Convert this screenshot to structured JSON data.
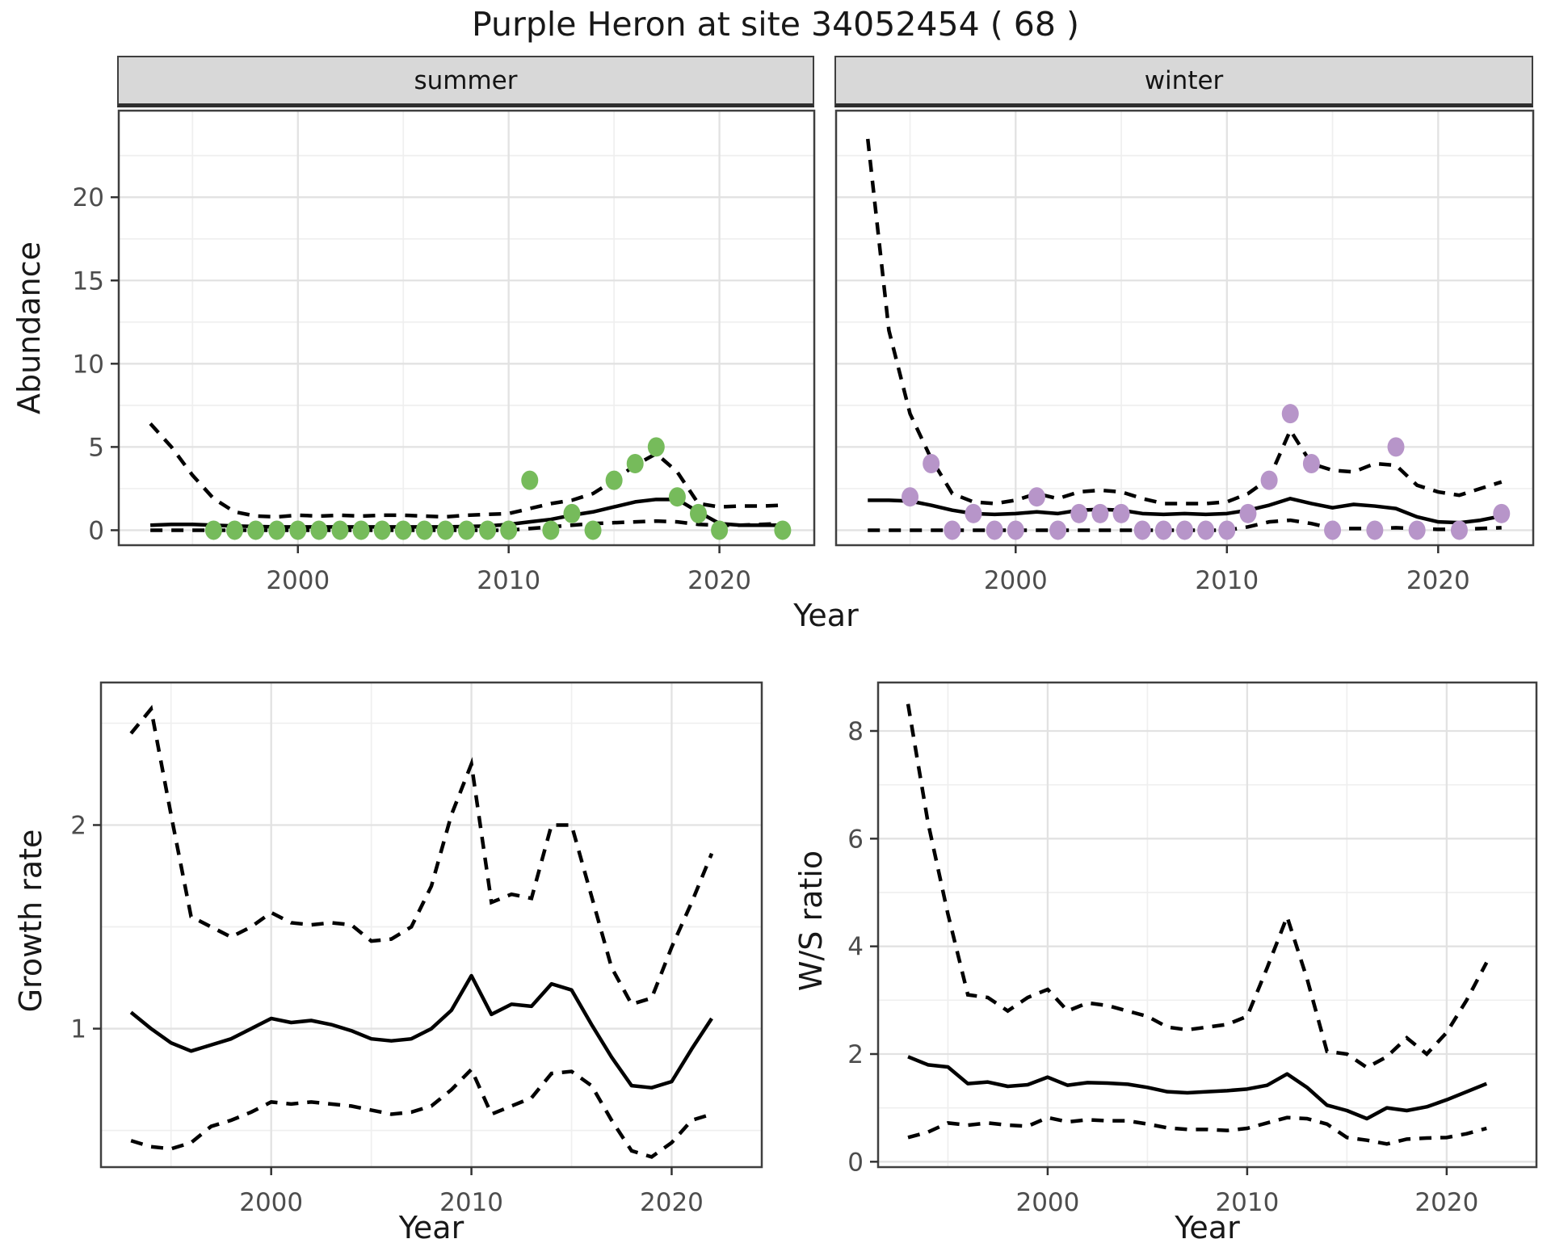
{
  "title": "Purple Heron at site 34052454 ( 68 )",
  "top_row": {
    "facets": [
      "summer",
      "winter"
    ],
    "ylabel": "Abundance",
    "xlabel": "Year"
  },
  "bottom_row": {
    "left_ylabel": "Growth rate",
    "left_xlabel": "Year",
    "right_ylabel": "W/S ratio",
    "right_xlabel": "Year"
  },
  "colors": {
    "summer_point": "#76BB5B",
    "winter_point": "#B795C9",
    "line": "#000000",
    "strip_bg": "#D8D8D8",
    "panel_border": "#3F3F3F",
    "grid_major": "#E2E2E2",
    "grid_minor": "#EFEFEF",
    "tick_text": "#4D4D4D",
    "tick_mark": "#333333"
  },
  "chart_data": [
    {
      "id": "summer",
      "type": "line",
      "facet_label": "summer",
      "xlabel": "Year",
      "ylabel": "Abundance",
      "x_domain": [
        1991.5,
        2024.5
      ],
      "y_domain": [
        -0.9,
        25.2
      ],
      "x_ticks": [
        2000,
        2010,
        2020
      ],
      "x_minor": [
        1995,
        2005,
        2015
      ],
      "y_ticks": [
        0,
        5,
        10,
        15,
        20
      ],
      "y_minor": [
        2.5,
        7.5,
        12.5,
        17.5,
        22.5
      ],
      "legend": "none",
      "grid": true,
      "point_color": "#76BB5B",
      "series": {
        "years": [
          1993,
          1994,
          1995,
          1996,
          1997,
          1998,
          1999,
          2000,
          2001,
          2002,
          2003,
          2004,
          2005,
          2006,
          2007,
          2008,
          2009,
          2010,
          2011,
          2012,
          2013,
          2014,
          2015,
          2016,
          2017,
          2018,
          2019,
          2020,
          2021,
          2022,
          2023
        ],
        "median": [
          0.3,
          0.35,
          0.35,
          0.3,
          0.25,
          0.22,
          0.2,
          0.2,
          0.2,
          0.2,
          0.2,
          0.2,
          0.2,
          0.2,
          0.2,
          0.22,
          0.25,
          0.35,
          0.5,
          0.65,
          0.9,
          1.1,
          1.4,
          1.7,
          1.85,
          1.85,
          1.1,
          0.4,
          0.3,
          0.3,
          0.3
        ],
        "upper": [
          6.4,
          5.0,
          3.3,
          1.9,
          1.1,
          0.85,
          0.8,
          0.9,
          0.85,
          0.9,
          0.85,
          0.9,
          0.9,
          0.85,
          0.8,
          0.9,
          0.95,
          1.0,
          1.3,
          1.6,
          1.8,
          2.2,
          3.0,
          3.9,
          4.6,
          3.5,
          1.6,
          1.4,
          1.45,
          1.45,
          1.5
        ],
        "lower": [
          0,
          0,
          0,
          0,
          0,
          0,
          0,
          0,
          0,
          0,
          0,
          0,
          0,
          0,
          0,
          0,
          0,
          0,
          0.1,
          0.2,
          0.3,
          0.4,
          0.45,
          0.5,
          0.55,
          0.5,
          0.35,
          0.3,
          0.3,
          0.35,
          0.4
        ]
      },
      "points": [
        [
          1996,
          0
        ],
        [
          1997,
          0
        ],
        [
          1998,
          0
        ],
        [
          1999,
          0
        ],
        [
          2000,
          0
        ],
        [
          2001,
          0
        ],
        [
          2002,
          0
        ],
        [
          2003,
          0
        ],
        [
          2004,
          0
        ],
        [
          2005,
          0
        ],
        [
          2006,
          0
        ],
        [
          2007,
          0
        ],
        [
          2008,
          0
        ],
        [
          2009,
          0
        ],
        [
          2010,
          0
        ],
        [
          2011,
          3
        ],
        [
          2012,
          0
        ],
        [
          2013,
          1
        ],
        [
          2014,
          0
        ],
        [
          2015,
          3
        ],
        [
          2016,
          4
        ],
        [
          2017,
          5
        ],
        [
          2018,
          2
        ],
        [
          2019,
          1
        ],
        [
          2020,
          0
        ],
        [
          2023,
          0
        ]
      ]
    },
    {
      "id": "winter",
      "type": "line",
      "facet_label": "winter",
      "xlabel": "Year",
      "ylabel": "Abundance",
      "x_domain": [
        1991.5,
        2024.5
      ],
      "y_domain": [
        -0.9,
        25.2
      ],
      "x_ticks": [
        2000,
        2010,
        2020
      ],
      "x_minor": [
        1995,
        2005,
        2015
      ],
      "y_ticks": [
        0,
        5,
        10,
        15,
        20
      ],
      "y_minor": [
        2.5,
        7.5,
        12.5,
        17.5,
        22.5
      ],
      "legend": "none",
      "grid": true,
      "point_color": "#B795C9",
      "series": {
        "years": [
          1993,
          1994,
          1995,
          1996,
          1997,
          1998,
          1999,
          2000,
          2001,
          2002,
          2003,
          2004,
          2005,
          2006,
          2007,
          2008,
          2009,
          2010,
          2011,
          2012,
          2013,
          2014,
          2015,
          2016,
          2017,
          2018,
          2019,
          2020,
          2021,
          2022,
          2023
        ],
        "median": [
          1.8,
          1.8,
          1.75,
          1.5,
          1.2,
          1.0,
          0.95,
          1.0,
          1.1,
          1.0,
          1.2,
          1.25,
          1.2,
          1.0,
          0.95,
          1.0,
          0.95,
          1.0,
          1.2,
          1.5,
          1.9,
          1.6,
          1.35,
          1.55,
          1.45,
          1.3,
          0.8,
          0.5,
          0.45,
          0.6,
          0.85
        ],
        "upper": [
          23.5,
          12.0,
          7.0,
          4.3,
          2.2,
          1.7,
          1.6,
          1.8,
          2.2,
          1.9,
          2.3,
          2.4,
          2.3,
          1.9,
          1.6,
          1.6,
          1.6,
          1.7,
          2.2,
          3.1,
          6.0,
          4.0,
          3.6,
          3.5,
          4.0,
          3.9,
          2.7,
          2.3,
          2.1,
          2.5,
          2.9
        ],
        "lower": [
          0,
          0,
          0,
          0,
          0,
          0,
          0,
          0,
          0,
          0,
          0,
          0,
          0,
          0,
          0,
          0,
          0,
          0,
          0.2,
          0.5,
          0.6,
          0.4,
          0.1,
          0.1,
          0.1,
          0.15,
          0.1,
          0.05,
          0.05,
          0.1,
          0.15
        ]
      },
      "points": [
        [
          1995,
          2
        ],
        [
          1996,
          4
        ],
        [
          1997,
          0
        ],
        [
          1998,
          1
        ],
        [
          1999,
          0
        ],
        [
          2000,
          0
        ],
        [
          2001,
          2
        ],
        [
          2002,
          0
        ],
        [
          2003,
          1
        ],
        [
          2004,
          1
        ],
        [
          2005,
          1
        ],
        [
          2006,
          0
        ],
        [
          2007,
          0
        ],
        [
          2008,
          0
        ],
        [
          2009,
          0
        ],
        [
          2010,
          0
        ],
        [
          2011,
          1
        ],
        [
          2012,
          3
        ],
        [
          2013,
          7
        ],
        [
          2014,
          4
        ],
        [
          2015,
          0
        ],
        [
          2017,
          0
        ],
        [
          2018,
          5
        ],
        [
          2019,
          0
        ],
        [
          2021,
          0
        ],
        [
          2023,
          1
        ]
      ]
    },
    {
      "id": "growth",
      "type": "line",
      "facet_label": "",
      "xlabel": "Year",
      "ylabel": "Growth rate",
      "x_domain": [
        1991.5,
        2024.5
      ],
      "y_domain": [
        0.32,
        2.7
      ],
      "x_ticks": [
        2000,
        2010,
        2020
      ],
      "x_minor": [
        1995,
        2005,
        2015
      ],
      "y_ticks": [
        1,
        2
      ],
      "y_minor": [
        0.5,
        1.5,
        2.5
      ],
      "legend": "none",
      "grid": true,
      "series": {
        "years": [
          1993,
          1994,
          1995,
          1996,
          1997,
          1998,
          1999,
          2000,
          2001,
          2002,
          2003,
          2004,
          2005,
          2006,
          2007,
          2008,
          2009,
          2010,
          2011,
          2012,
          2013,
          2014,
          2015,
          2016,
          2017,
          2018,
          2019,
          2020,
          2021,
          2022
        ],
        "median": [
          1.08,
          1.0,
          0.93,
          0.89,
          0.92,
          0.95,
          1.0,
          1.05,
          1.03,
          1.04,
          1.02,
          0.99,
          0.95,
          0.94,
          0.95,
          1.0,
          1.09,
          1.26,
          1.07,
          1.12,
          1.11,
          1.22,
          1.19,
          1.02,
          0.86,
          0.72,
          0.71,
          0.74,
          0.9,
          1.05
        ],
        "upper": [
          2.45,
          2.57,
          2.05,
          1.55,
          1.5,
          1.45,
          1.5,
          1.57,
          1.52,
          1.51,
          1.52,
          1.51,
          1.43,
          1.44,
          1.5,
          1.7,
          2.05,
          2.3,
          1.62,
          1.66,
          1.64,
          2.0,
          2.0,
          1.65,
          1.3,
          1.12,
          1.15,
          1.4,
          1.62,
          1.86
        ],
        "lower": [
          0.45,
          0.42,
          0.41,
          0.44,
          0.52,
          0.55,
          0.59,
          0.64,
          0.63,
          0.64,
          0.63,
          0.62,
          0.6,
          0.58,
          0.59,
          0.62,
          0.7,
          0.8,
          0.58,
          0.62,
          0.66,
          0.78,
          0.79,
          0.72,
          0.55,
          0.4,
          0.37,
          0.44,
          0.55,
          0.58
        ]
      },
      "points": []
    },
    {
      "id": "ws",
      "type": "line",
      "facet_label": "",
      "xlabel": "Year",
      "ylabel": "W/S ratio",
      "x_domain": [
        1991.5,
        2024.5
      ],
      "y_domain": [
        -0.1,
        8.9
      ],
      "x_ticks": [
        2000,
        2010,
        2020
      ],
      "x_minor": [
        1995,
        2005,
        2015
      ],
      "y_ticks": [
        0,
        2,
        4,
        6,
        8
      ],
      "y_minor": [
        1,
        3,
        5,
        7
      ],
      "legend": "none",
      "grid": true,
      "series": {
        "years": [
          1993,
          1994,
          1995,
          1996,
          1997,
          1998,
          1999,
          2000,
          2001,
          2002,
          2003,
          2004,
          2005,
          2006,
          2007,
          2008,
          2009,
          2010,
          2011,
          2012,
          2013,
          2014,
          2015,
          2016,
          2017,
          2018,
          2019,
          2020,
          2021,
          2022
        ],
        "median": [
          1.95,
          1.8,
          1.76,
          1.45,
          1.48,
          1.4,
          1.43,
          1.57,
          1.42,
          1.47,
          1.46,
          1.44,
          1.38,
          1.3,
          1.28,
          1.3,
          1.32,
          1.35,
          1.42,
          1.63,
          1.38,
          1.05,
          0.95,
          0.8,
          1.0,
          0.95,
          1.02,
          1.15,
          1.3,
          1.45
        ],
        "upper": [
          8.5,
          6.3,
          4.6,
          3.1,
          3.05,
          2.8,
          3.05,
          3.2,
          2.8,
          2.95,
          2.9,
          2.8,
          2.7,
          2.5,
          2.45,
          2.5,
          2.55,
          2.7,
          3.6,
          4.55,
          3.4,
          2.05,
          2.0,
          1.75,
          1.95,
          2.3,
          2.0,
          2.4,
          3.0,
          3.7
        ],
        "lower": [
          0.45,
          0.55,
          0.72,
          0.68,
          0.72,
          0.68,
          0.66,
          0.82,
          0.74,
          0.78,
          0.76,
          0.76,
          0.7,
          0.63,
          0.6,
          0.6,
          0.58,
          0.62,
          0.72,
          0.82,
          0.8,
          0.7,
          0.45,
          0.4,
          0.33,
          0.42,
          0.44,
          0.45,
          0.52,
          0.62
        ]
      },
      "points": []
    }
  ]
}
